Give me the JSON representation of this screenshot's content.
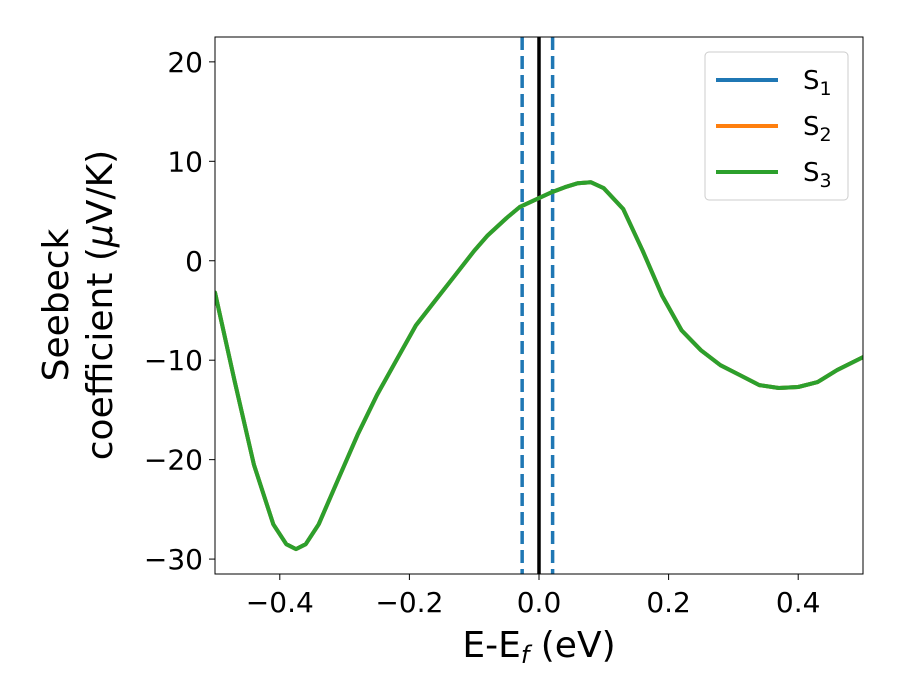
{
  "chart_data": {
    "type": "line",
    "xlabel": {
      "main": "E-E",
      "sub": "f",
      "suffix": " (eV)"
    },
    "ylabel": {
      "line1": "Seebeck",
      "line2_pre": "coefficient  (",
      "mu": "μ",
      "line2_post": "V/K)"
    },
    "xlim": [
      -0.5,
      0.5
    ],
    "ylim": [
      -31.5,
      22.5
    ],
    "xticks": [
      -0.4,
      -0.2,
      0.0,
      0.2,
      0.4
    ],
    "xtick_labels": [
      "−0.4",
      "−0.2",
      "0.0",
      "0.2",
      "0.4"
    ],
    "yticks": [
      -30,
      -20,
      -10,
      0,
      10,
      20
    ],
    "ytick_labels": [
      "−30",
      "−20",
      "−10",
      "0",
      "10",
      "20"
    ],
    "grid": false,
    "legend_position": "top-right",
    "x": [
      -0.5,
      -0.47,
      -0.44,
      -0.41,
      -0.39,
      -0.375,
      -0.36,
      -0.34,
      -0.31,
      -0.28,
      -0.25,
      -0.22,
      -0.19,
      -0.16,
      -0.13,
      -0.1,
      -0.08,
      -0.05,
      -0.03,
      -0.01,
      0.0,
      0.02,
      0.04,
      0.06,
      0.08,
      0.1,
      0.13,
      0.16,
      0.19,
      0.22,
      0.25,
      0.28,
      0.31,
      0.34,
      0.37,
      0.4,
      0.43,
      0.46,
      0.5
    ],
    "series": [
      {
        "name": "S",
        "sub": "1",
        "color": "#1f77b4",
        "values": [
          -3.2,
          -12.0,
          -20.5,
          -26.5,
          -28.5,
          -29.0,
          -28.5,
          -26.5,
          -22.0,
          -17.5,
          -13.5,
          -10.0,
          -6.5,
          -4.0,
          -1.5,
          1.0,
          2.5,
          4.3,
          5.4,
          6.0,
          6.3,
          6.9,
          7.4,
          7.8,
          7.9,
          7.3,
          5.2,
          1.0,
          -3.5,
          -7.0,
          -9.0,
          -10.5,
          -11.5,
          -12.5,
          -12.8,
          -12.7,
          -12.2,
          -11.0,
          -9.7
        ]
      },
      {
        "name": "S",
        "sub": "2",
        "color": "#ff7f0e",
        "values": [
          -3.2,
          -12.0,
          -20.5,
          -26.5,
          -28.5,
          -29.0,
          -28.5,
          -26.5,
          -22.0,
          -17.5,
          -13.5,
          -10.0,
          -6.5,
          -4.0,
          -1.5,
          1.0,
          2.5,
          4.3,
          5.4,
          6.0,
          6.3,
          6.9,
          7.4,
          7.8,
          7.9,
          7.3,
          5.2,
          1.0,
          -3.5,
          -7.0,
          -9.0,
          -10.5,
          -11.5,
          -12.5,
          -12.8,
          -12.7,
          -12.2,
          -11.0,
          -9.7
        ]
      },
      {
        "name": "S",
        "sub": "3",
        "color": "#2ca02c",
        "values": [
          -3.2,
          -12.0,
          -20.5,
          -26.5,
          -28.5,
          -29.0,
          -28.5,
          -26.5,
          -22.0,
          -17.5,
          -13.5,
          -10.0,
          -6.5,
          -4.0,
          -1.5,
          1.0,
          2.5,
          4.3,
          5.4,
          6.0,
          6.3,
          6.9,
          7.4,
          7.8,
          7.9,
          7.3,
          5.2,
          1.0,
          -3.5,
          -7.0,
          -9.0,
          -10.5,
          -11.5,
          -12.5,
          -12.8,
          -12.7,
          -12.2,
          -11.0,
          -9.7
        ]
      }
    ],
    "vlines": [
      {
        "x": -0.026,
        "color": "#1f77b4",
        "style": "dashed"
      },
      {
        "x": 0.0,
        "color": "#000000",
        "style": "solid"
      },
      {
        "x": 0.021,
        "color": "#1f77b4",
        "style": "dashed"
      }
    ]
  }
}
